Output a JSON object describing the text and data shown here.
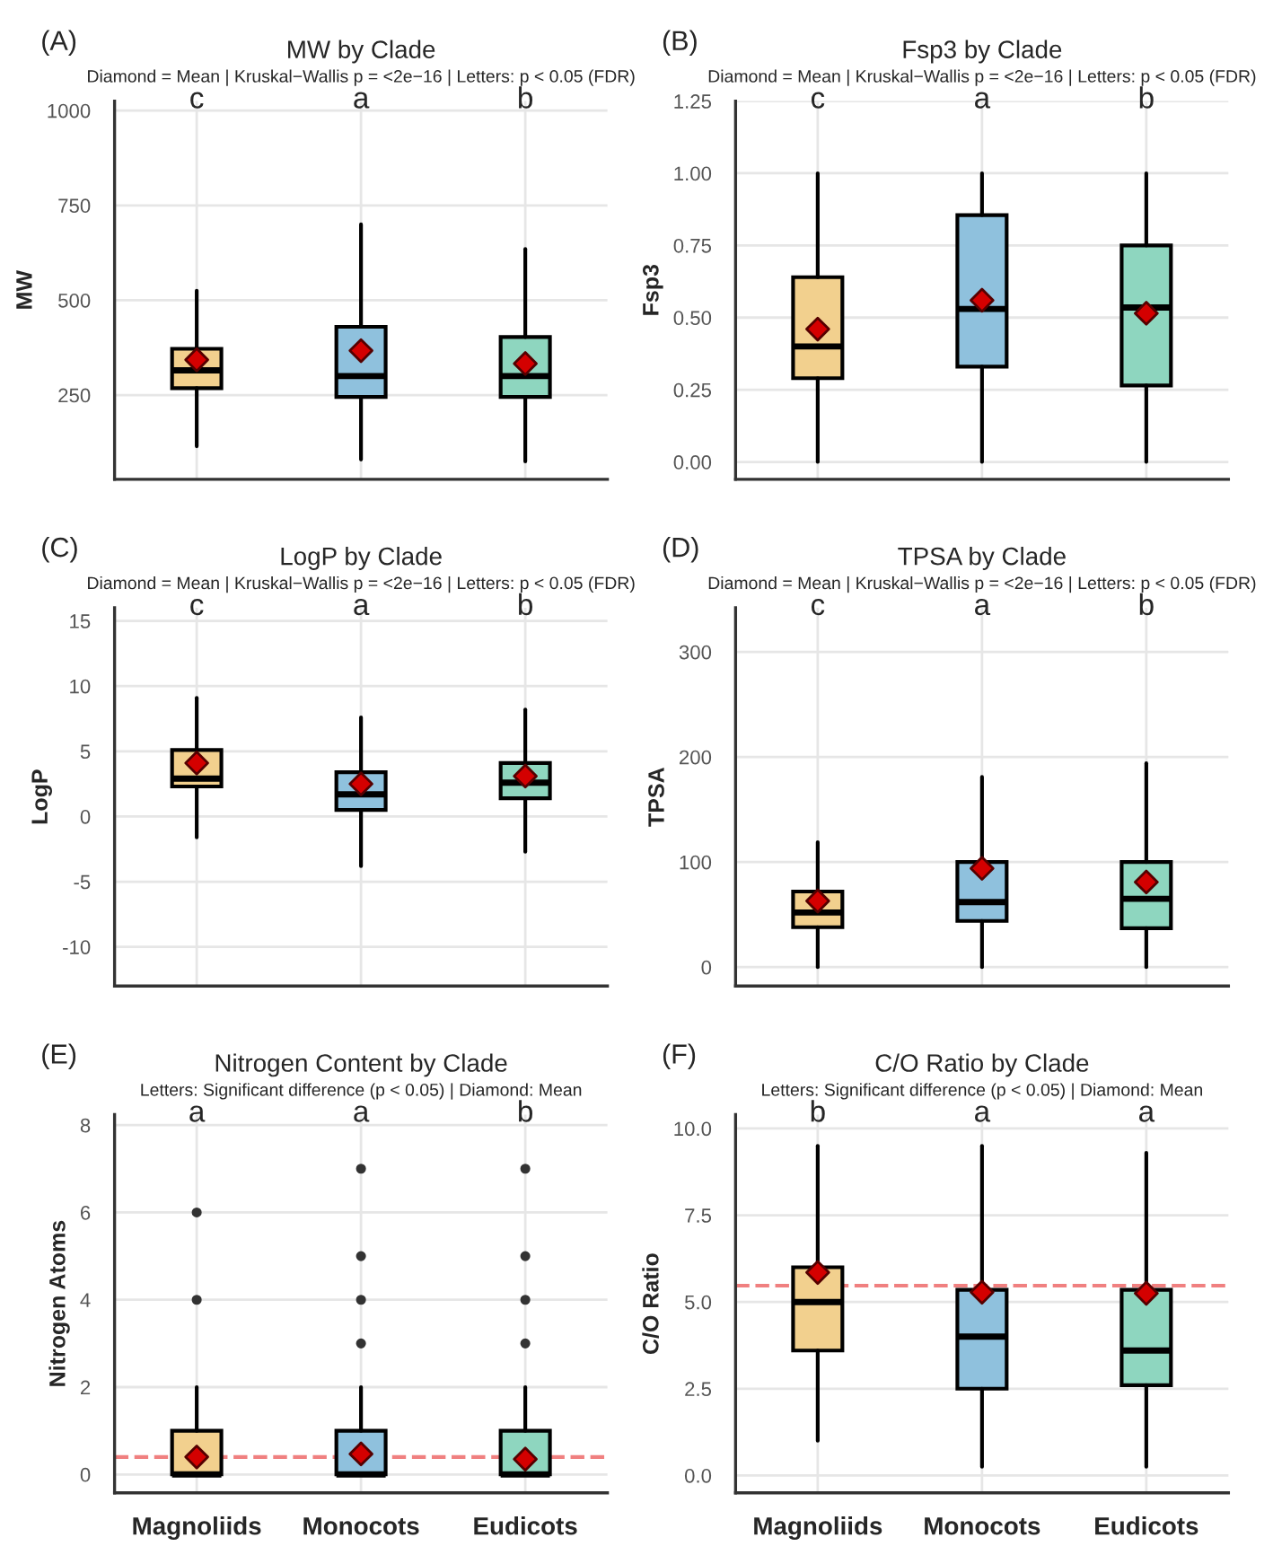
{
  "chart_data": [
    {
      "type": "box",
      "title": "MW by Clade",
      "subtitle": "Diamond = Mean | Kruskal−Wallis p = <2e−16 | Letters: p < 0.05 (FDR)",
      "ylabel": "MW",
      "categories": [
        null,
        null,
        null
      ],
      "colors": [
        "#f2d08e",
        "#8fc1dd",
        "#8ed6bf"
      ],
      "boxes": [
        {
          "low": 115,
          "q1": 268,
          "median": 315,
          "q3": 372,
          "high": 525,
          "mean": 343
        },
        {
          "low": 80,
          "q1": 245,
          "median": 300,
          "q3": 430,
          "high": 700,
          "mean": 367
        },
        {
          "low": 75,
          "q1": 245,
          "median": 300,
          "q3": 403,
          "high": 635,
          "mean": 333
        }
      ],
      "ylim": [
        28,
        1025
      ],
      "yticks": [
        250,
        500,
        750,
        1000
      ],
      "tick_labels": "y",
      "grid": true,
      "annotations": [
        "(A)",
        "c",
        "a",
        "b"
      ]
    },
    {
      "type": "box",
      "title": "Fsp3 by Clade",
      "subtitle": "Diamond = Mean | Kruskal−Wallis p = <2e−16 | Letters: p < 0.05 (FDR)",
      "ylabel": "Fsp3",
      "categories": [
        null,
        null,
        null
      ],
      "colors": [
        "#f2d08e",
        "#8fc1dd",
        "#8ed6bf"
      ],
      "boxes": [
        {
          "low": 0,
          "q1": 0.29,
          "median": 0.4,
          "q3": 0.64,
          "high": 1.0,
          "mean": 0.46
        },
        {
          "low": 0,
          "q1": 0.33,
          "median": 0.53,
          "q3": 0.855,
          "high": 1.0,
          "mean": 0.56
        },
        {
          "low": 0,
          "q1": 0.265,
          "median": 0.535,
          "q3": 0.75,
          "high": 1.0,
          "mean": 0.515
        }
      ],
      "ylim": [
        -0.06,
        1.25
      ],
      "yticks": [
        {
          "value": 0,
          "label": "0.00"
        },
        {
          "value": 0.25,
          "label": "0.25"
        },
        {
          "value": 0.5,
          "label": "0.50"
        },
        {
          "value": 0.75,
          "label": "0.75"
        },
        {
          "value": 1.0,
          "label": "1.00"
        },
        {
          "value": 1.25,
          "label": "1.25"
        }
      ],
      "tick_labels": "y",
      "grid": true,
      "annotations": [
        "(B)",
        "c",
        "a",
        "b"
      ]
    },
    {
      "type": "box",
      "title": "LogP by Clade",
      "subtitle": "Diamond = Mean | Kruskal−Wallis p = <2e−16 | Letters: p < 0.05 (FDR)",
      "ylabel": "LogP",
      "categories": [
        null,
        null,
        null
      ],
      "colors": [
        "#f2d08e",
        "#8fc1dd",
        "#8ed6bf"
      ],
      "boxes": [
        {
          "low": -1.6,
          "q1": 2.3,
          "median": 2.9,
          "q3": 5.1,
          "high": 9.1,
          "mean": 4.1
        },
        {
          "low": -3.8,
          "q1": 0.5,
          "median": 1.7,
          "q3": 3.4,
          "high": 7.6,
          "mean": 2.5
        },
        {
          "low": -2.7,
          "q1": 1.4,
          "median": 2.6,
          "q3": 4.1,
          "high": 8.2,
          "mean": 3.1
        }
      ],
      "ylim": [
        -13,
        16
      ],
      "yticks": [
        -10,
        -5,
        0,
        5,
        10,
        15
      ],
      "tick_labels": "y",
      "grid": true,
      "annotations": [
        "(C)",
        "c",
        "a",
        "b"
      ]
    },
    {
      "type": "box",
      "title": "TPSA by Clade",
      "subtitle": "Diamond = Mean | Kruskal−Wallis p = <2e−16 | Letters: p < 0.05 (FDR)",
      "ylabel": "TPSA",
      "categories": [
        null,
        null,
        null
      ],
      "colors": [
        "#f2d08e",
        "#8fc1dd",
        "#8ed6bf"
      ],
      "boxes": [
        {
          "low": 0,
          "q1": 38,
          "median": 52,
          "q3": 72,
          "high": 119,
          "mean": 63
        },
        {
          "low": 0,
          "q1": 44,
          "median": 62,
          "q3": 100,
          "high": 181,
          "mean": 94
        },
        {
          "low": 0,
          "q1": 37,
          "median": 65,
          "q3": 100,
          "high": 194,
          "mean": 81
        }
      ],
      "ylim": [
        -18,
        342
      ],
      "yticks": [
        0,
        100,
        200,
        300
      ],
      "tick_labels": "y",
      "grid": true,
      "annotations": [
        "(D)",
        "c",
        "a",
        "b"
      ]
    },
    {
      "type": "box",
      "title": "Nitrogen Content by Clade",
      "subtitle": "Letters: Significant difference (p < 0.05) | Diamond: Mean",
      "ylabel": "Nitrogen Atoms",
      "categories": [
        "Magnoliids",
        "Monocots",
        "Eudicots"
      ],
      "colors": [
        "#f2d08e",
        "#8fc1dd",
        "#8ed6bf"
      ],
      "boxes": [
        {
          "low": 0,
          "q1": 0,
          "median": 0,
          "q3": 1,
          "high": 2,
          "mean": 0.4,
          "outliers": [
            4,
            6
          ]
        },
        {
          "low": 0,
          "q1": 0,
          "median": 0,
          "q3": 1,
          "high": 2,
          "mean": 0.47,
          "outliers": [
            3,
            4,
            5,
            7
          ]
        },
        {
          "low": 0,
          "q1": 0,
          "median": 0,
          "q3": 1,
          "high": 2,
          "mean": 0.35,
          "outliers": [
            3,
            4,
            5,
            7
          ]
        }
      ],
      "ylim": [
        -0.42,
        8.24
      ],
      "yticks": [
        0,
        2,
        4,
        6,
        8
      ],
      "grid": true,
      "ref_lines": [
        {
          "axis": "y",
          "value": 0.4,
          "color": "#f08080",
          "line_style": "dashed"
        }
      ],
      "annotations": [
        "(E)",
        "a",
        "a",
        "b"
      ]
    },
    {
      "type": "box",
      "title": "C/O Ratio by Clade",
      "subtitle": "Letters: Significant difference (p < 0.05) | Diamond: Mean",
      "ylabel": "C/O Ratio",
      "categories": [
        "Magnoliids",
        "Monocots",
        "Eudicots"
      ],
      "colors": [
        "#f2d08e",
        "#8fc1dd",
        "#8ed6bf"
      ],
      "boxes": [
        {
          "low": 1.0,
          "q1": 3.6,
          "median": 5.0,
          "q3": 6.0,
          "high": 9.5,
          "mean": 5.85
        },
        {
          "low": 0.25,
          "q1": 2.5,
          "median": 4.0,
          "q3": 5.35,
          "high": 9.5,
          "mean": 5.28
        },
        {
          "low": 0.25,
          "q1": 2.6,
          "median": 3.6,
          "q3": 5.35,
          "high": 9.3,
          "mean": 5.25
        }
      ],
      "ylim": [
        -0.5,
        10.4
      ],
      "yticks": [
        {
          "value": 0,
          "label": "0.0"
        },
        {
          "value": 2.5,
          "label": "2.5"
        },
        {
          "value": 5,
          "label": "5.0"
        },
        {
          "value": 7.5,
          "label": "7.5"
        },
        {
          "value": 10,
          "label": "10.0"
        }
      ],
      "grid": true,
      "ref_lines": [
        {
          "axis": "y",
          "value": 5.47,
          "color": "#f08080",
          "line_style": "dashed"
        }
      ],
      "annotations": [
        "(F)",
        "b",
        "a",
        "a"
      ]
    }
  ]
}
